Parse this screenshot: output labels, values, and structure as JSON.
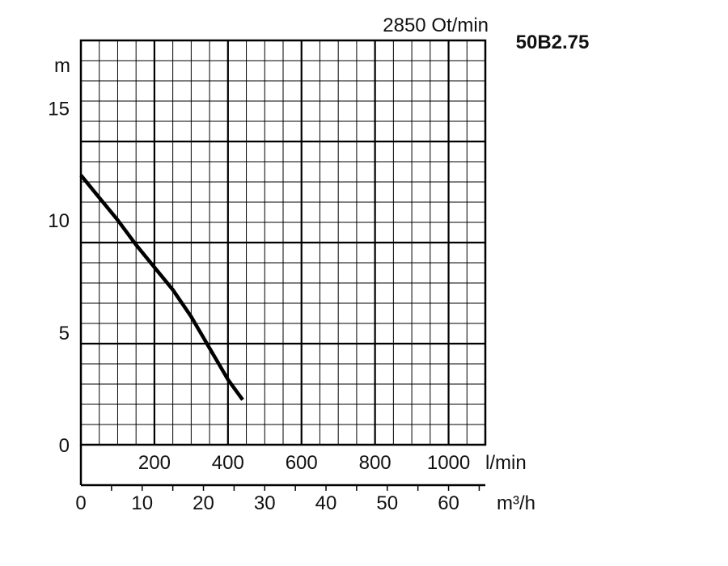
{
  "chart_data": {
    "type": "line",
    "title": "",
    "speed_label": "2850 Ot/min",
    "model": "50B2.75",
    "y_unit": "m",
    "ylim": [
      0,
      18
    ],
    "y_ticks": [
      "0",
      "5",
      "10",
      "15"
    ],
    "y_tick_values": [
      0,
      5,
      10,
      15
    ],
    "x_axis_lpm": {
      "unit": "l/min",
      "range": [
        0,
        1100
      ],
      "ticks": [
        "200",
        "400",
        "600",
        "800",
        "1000"
      ],
      "tick_values": [
        200,
        400,
        600,
        800,
        1000
      ]
    },
    "x_axis_m3h": {
      "unit": "m³/h",
      "range": [
        0,
        66
      ],
      "ticks": [
        "0",
        "10",
        "20",
        "30",
        "40",
        "50",
        "60"
      ],
      "tick_values": [
        0,
        10,
        20,
        30,
        40,
        50,
        60
      ]
    },
    "grid": true,
    "series": [
      {
        "x": [
          0,
          50,
          100,
          150,
          200,
          250,
          300,
          350,
          400,
          440
        ],
        "y": [
          12.0,
          11.0,
          10.0,
          8.9,
          7.9,
          6.9,
          5.7,
          4.3,
          2.9,
          2.0
        ],
        "color": "#000000"
      }
    ]
  }
}
